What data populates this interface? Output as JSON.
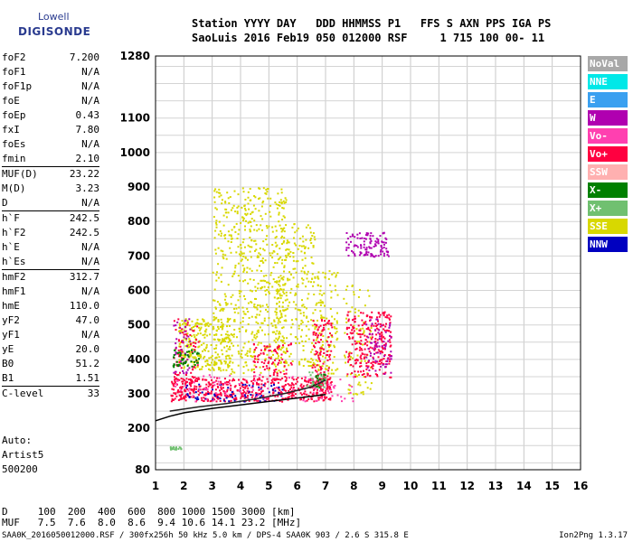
{
  "logo": {
    "line1": "Lowell",
    "line2": "DIGISONDE"
  },
  "header": {
    "line1": "Station YYYY DAY   DDD HHMMSS P1   FFS S AXN PPS IGA PS",
    "line2": "SaoLuis 2016 Feb19 050 012000 RSF     1 715 100 00- 11"
  },
  "params": [
    {
      "name": "foF2",
      "value": "7.200"
    },
    {
      "name": "foF1",
      "value": "N/A"
    },
    {
      "name": "foF1p",
      "value": "N/A"
    },
    {
      "name": "foE",
      "value": "N/A"
    },
    {
      "name": "foEp",
      "value": "0.43"
    },
    {
      "name": "fxI",
      "value": "7.80"
    },
    {
      "name": "foEs",
      "value": "N/A"
    },
    {
      "name": "fmin",
      "value": "2.10",
      "sep_after": true
    },
    {
      "name": "MUF(D)",
      "value": "23.22"
    },
    {
      "name": "M(D)",
      "value": "3.23"
    },
    {
      "name": "D",
      "value": "N/A",
      "sep_after": true
    },
    {
      "name": "h`F",
      "value": "242.5"
    },
    {
      "name": "h`F2",
      "value": "242.5"
    },
    {
      "name": "h`E",
      "value": "N/A"
    },
    {
      "name": "h`Es",
      "value": "N/A",
      "sep_after": true
    },
    {
      "name": "hmF2",
      "value": "312.7"
    },
    {
      "name": "hmF1",
      "value": "N/A"
    },
    {
      "name": "hmE",
      "value": "110.0"
    },
    {
      "name": "yF2",
      "value": "47.0"
    },
    {
      "name": "yF1",
      "value": "N/A"
    },
    {
      "name": "yE",
      "value": "20.0"
    },
    {
      "name": "B0",
      "value": "51.2"
    },
    {
      "name": "B1",
      "value": "1.51",
      "sep_after": true
    },
    {
      "name": "C-level",
      "value": "33",
      "sep_after": true
    }
  ],
  "auto": {
    "line1": "Auto:",
    "line2": "Artist5",
    "line3": "500200"
  },
  "footer": {
    "d_line": "D     100  200  400  600  800 1000 1500 3000 [km]",
    "muf_line": "MUF   7.5  7.6  8.0  8.6  9.4 10.6 14.1 23.2 [MHz]",
    "bottom_line": "SAA0K_2016050012000.RSF / 300fx256h 50 kHz 5.0 km / DPS-4 SAA0K 903 / 2.6 S 315.8 E",
    "version": "Ion2Png 1.3.17"
  },
  "legend": [
    {
      "label": "NoVal",
      "color": "#a8a8a8"
    },
    {
      "label": "NNE",
      "color": "#00e8e8"
    },
    {
      "label": "E",
      "color": "#3aa0f0"
    },
    {
      "label": "W",
      "color": "#b000b0"
    },
    {
      "label": "Vo-",
      "color": "#ff40b0"
    },
    {
      "label": "Vo+",
      "color": "#ff0040"
    },
    {
      "label": "SSW",
      "color": "#ffb0b0"
    },
    {
      "label": "X-",
      "color": "#008000"
    },
    {
      "label": "X+",
      "color": "#70c070"
    },
    {
      "label": "SSE",
      "color": "#d8d800"
    },
    {
      "label": "NNW",
      "color": "#0000c0"
    }
  ],
  "chart_data": {
    "type": "scatter",
    "title": "",
    "xlabel": "",
    "ylabel": "",
    "xlim": [
      1,
      16
    ],
    "ylim": [
      80,
      1280
    ],
    "x_ticks": [
      1,
      2,
      3,
      4,
      5,
      6,
      7,
      8,
      9,
      10,
      11,
      12,
      13,
      14,
      15,
      16
    ],
    "y_ticks": [
      80,
      200,
      300,
      400,
      500,
      600,
      700,
      800,
      900,
      1000,
      1100,
      1280
    ],
    "grid": true,
    "legend_position": "right",
    "series": [
      {
        "name": "SSE",
        "color": "#d8d800",
        "regions": [
          {
            "x": [
              1.8,
              3.6
            ],
            "y": [
              370,
              520
            ],
            "count": 260
          },
          {
            "x": [
              3.0,
              5.6
            ],
            "y": [
              360,
              900
            ],
            "count": 620
          },
          {
            "x": [
              5.2,
              6.6
            ],
            "y": [
              380,
              800
            ],
            "count": 260
          },
          {
            "x": [
              6.6,
              7.4
            ],
            "y": [
              360,
              660
            ],
            "count": 120
          },
          {
            "x": [
              7.6,
              8.6
            ],
            "y": [
              300,
              620
            ],
            "count": 80
          }
        ]
      },
      {
        "name": "Vo+",
        "color": "#ff0040",
        "regions": [
          {
            "x": [
              1.5,
              7.2
            ],
            "y": [
              280,
              350
            ],
            "count": 520
          },
          {
            "x": [
              1.6,
              2.5
            ],
            "y": [
              300,
              520
            ],
            "count": 90
          },
          {
            "x": [
              4.4,
              5.8
            ],
            "y": [
              350,
              450
            ],
            "count": 80
          },
          {
            "x": [
              6.5,
              7.2
            ],
            "y": [
              300,
              520
            ],
            "count": 120
          },
          {
            "x": [
              7.7,
              9.3
            ],
            "y": [
              350,
              540
            ],
            "count": 260
          }
        ]
      },
      {
        "name": "W",
        "color": "#b000b0",
        "regions": [
          {
            "x": [
              7.7,
              9.2
            ],
            "y": [
              700,
              770
            ],
            "count": 110
          },
          {
            "x": [
              8.4,
              9.3
            ],
            "y": [
              360,
              520
            ],
            "count": 70
          },
          {
            "x": [
              1.6,
              2.2
            ],
            "y": [
              360,
              520
            ],
            "count": 40
          }
        ]
      },
      {
        "name": "X-",
        "color": "#008000",
        "regions": [
          {
            "x": [
              1.6,
              2.5
            ],
            "y": [
              380,
              430
            ],
            "count": 50
          },
          {
            "x": [
              6.5,
              7.0
            ],
            "y": [
              320,
              360
            ],
            "count": 20
          }
        ]
      },
      {
        "name": "X+",
        "color": "#70c070",
        "regions": [
          {
            "x": [
              1.5,
              1.9
            ],
            "y": [
              140,
              148
            ],
            "count": 20
          },
          {
            "x": [
              6.3,
              7.0
            ],
            "y": [
              320,
              370
            ],
            "count": 25
          }
        ]
      },
      {
        "name": "NNW",
        "color": "#0000c0",
        "regions": [
          {
            "x": [
              2.0,
              5.5
            ],
            "y": [
              280,
              330
            ],
            "count": 70
          }
        ]
      },
      {
        "name": "Vo-",
        "color": "#ff40b0",
        "regions": [
          {
            "x": [
              1.6,
              8.0
            ],
            "y": [
              280,
              360
            ],
            "count": 90
          }
        ]
      }
    ],
    "lines": [
      {
        "name": "profile",
        "color": "#000000",
        "points": [
          [
            1.0,
            222
          ],
          [
            1.5,
            235
          ],
          [
            2.0,
            245
          ],
          [
            3.0,
            258
          ],
          [
            4.0,
            268
          ],
          [
            5.0,
            278
          ],
          [
            6.0,
            288
          ],
          [
            7.0,
            298
          ]
        ]
      },
      {
        "name": "trace",
        "color": "#222222",
        "points": [
          [
            1.5,
            250
          ],
          [
            2.5,
            262
          ],
          [
            3.5,
            272
          ],
          [
            4.5,
            285
          ],
          [
            5.5,
            300
          ],
          [
            6.5,
            320
          ],
          [
            7.0,
            340
          ]
        ]
      }
    ]
  }
}
